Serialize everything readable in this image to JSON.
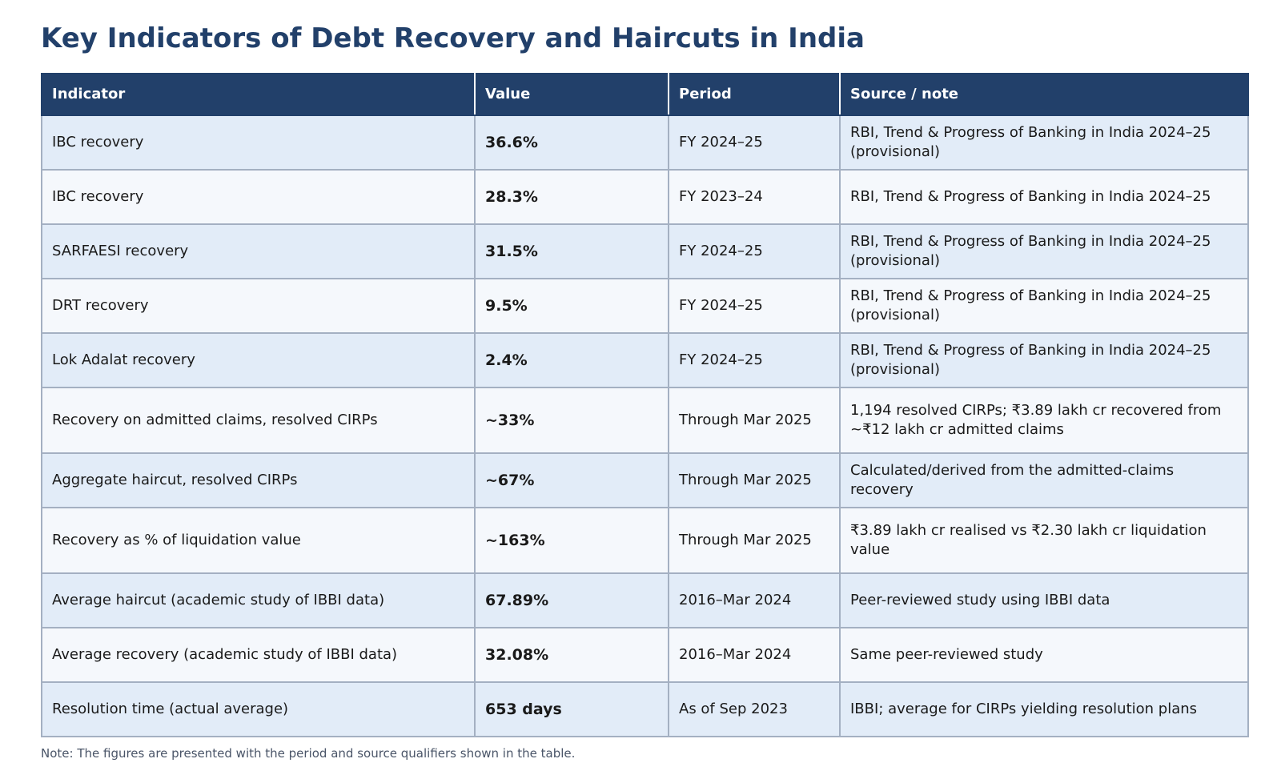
{
  "title": "Key Indicators of Debt Recovery and Haircuts in India",
  "colors": {
    "header_bg": "#22406a",
    "title": "#22406a",
    "row_odd": "#e2ecf8",
    "row_even": "#f5f8fc"
  },
  "chart_data": {
    "type": "table",
    "title": "Key Indicators of Debt Recovery and Haircuts in India",
    "columns": [
      "Indicator",
      "Value",
      "Period",
      "Source / note"
    ],
    "rows": [
      [
        "IBC recovery",
        "36.6%",
        "FY 2024–25",
        "RBI, Trend & Progress of Banking in India 2024–25 (provisional)"
      ],
      [
        "IBC recovery",
        "28.3%",
        "FY 2023–24",
        "RBI, Trend & Progress of Banking in India 2024–25"
      ],
      [
        "SARFAESI recovery",
        "31.5%",
        "FY 2024–25",
        "RBI, Trend & Progress of Banking in India 2024–25 (provisional)"
      ],
      [
        "DRT recovery",
        "9.5%",
        "FY 2024–25",
        "RBI, Trend & Progress of Banking in India 2024–25 (provisional)"
      ],
      [
        "Lok Adalat recovery",
        "2.4%",
        "FY 2024–25",
        "RBI, Trend & Progress of Banking in India 2024–25 (provisional)"
      ],
      [
        "Recovery on admitted claims, resolved CIRPs",
        "~33%",
        "Through Mar 2025",
        "1,194 resolved CIRPs; ₹3.89 lakh cr recovered from ~₹12 lakh cr admitted claims"
      ],
      [
        "Aggregate haircut, resolved CIRPs",
        "~67%",
        "Through Mar 2025",
        "Calculated/derived from the admitted-claims recovery"
      ],
      [
        "Recovery as % of liquidation value",
        "~163%",
        "Through Mar 2025",
        "₹3.89 lakh cr realised vs ₹2.30 lakh cr liquidation value"
      ],
      [
        "Average haircut (academic study of IBBI data)",
        "67.89%",
        "2016–Mar 2024",
        "Peer-reviewed study using IBBI data"
      ],
      [
        "Average recovery (academic study of IBBI data)",
        "32.08%",
        "2016–Mar 2024",
        "Same peer-reviewed study"
      ],
      [
        "Resolution time (actual average)",
        "653 days",
        "As of Sep 2023",
        "IBBI; average for CIRPs yielding resolution plans"
      ]
    ]
  },
  "note": "Note: The figures are presented with the period and source qualifiers shown in the table."
}
